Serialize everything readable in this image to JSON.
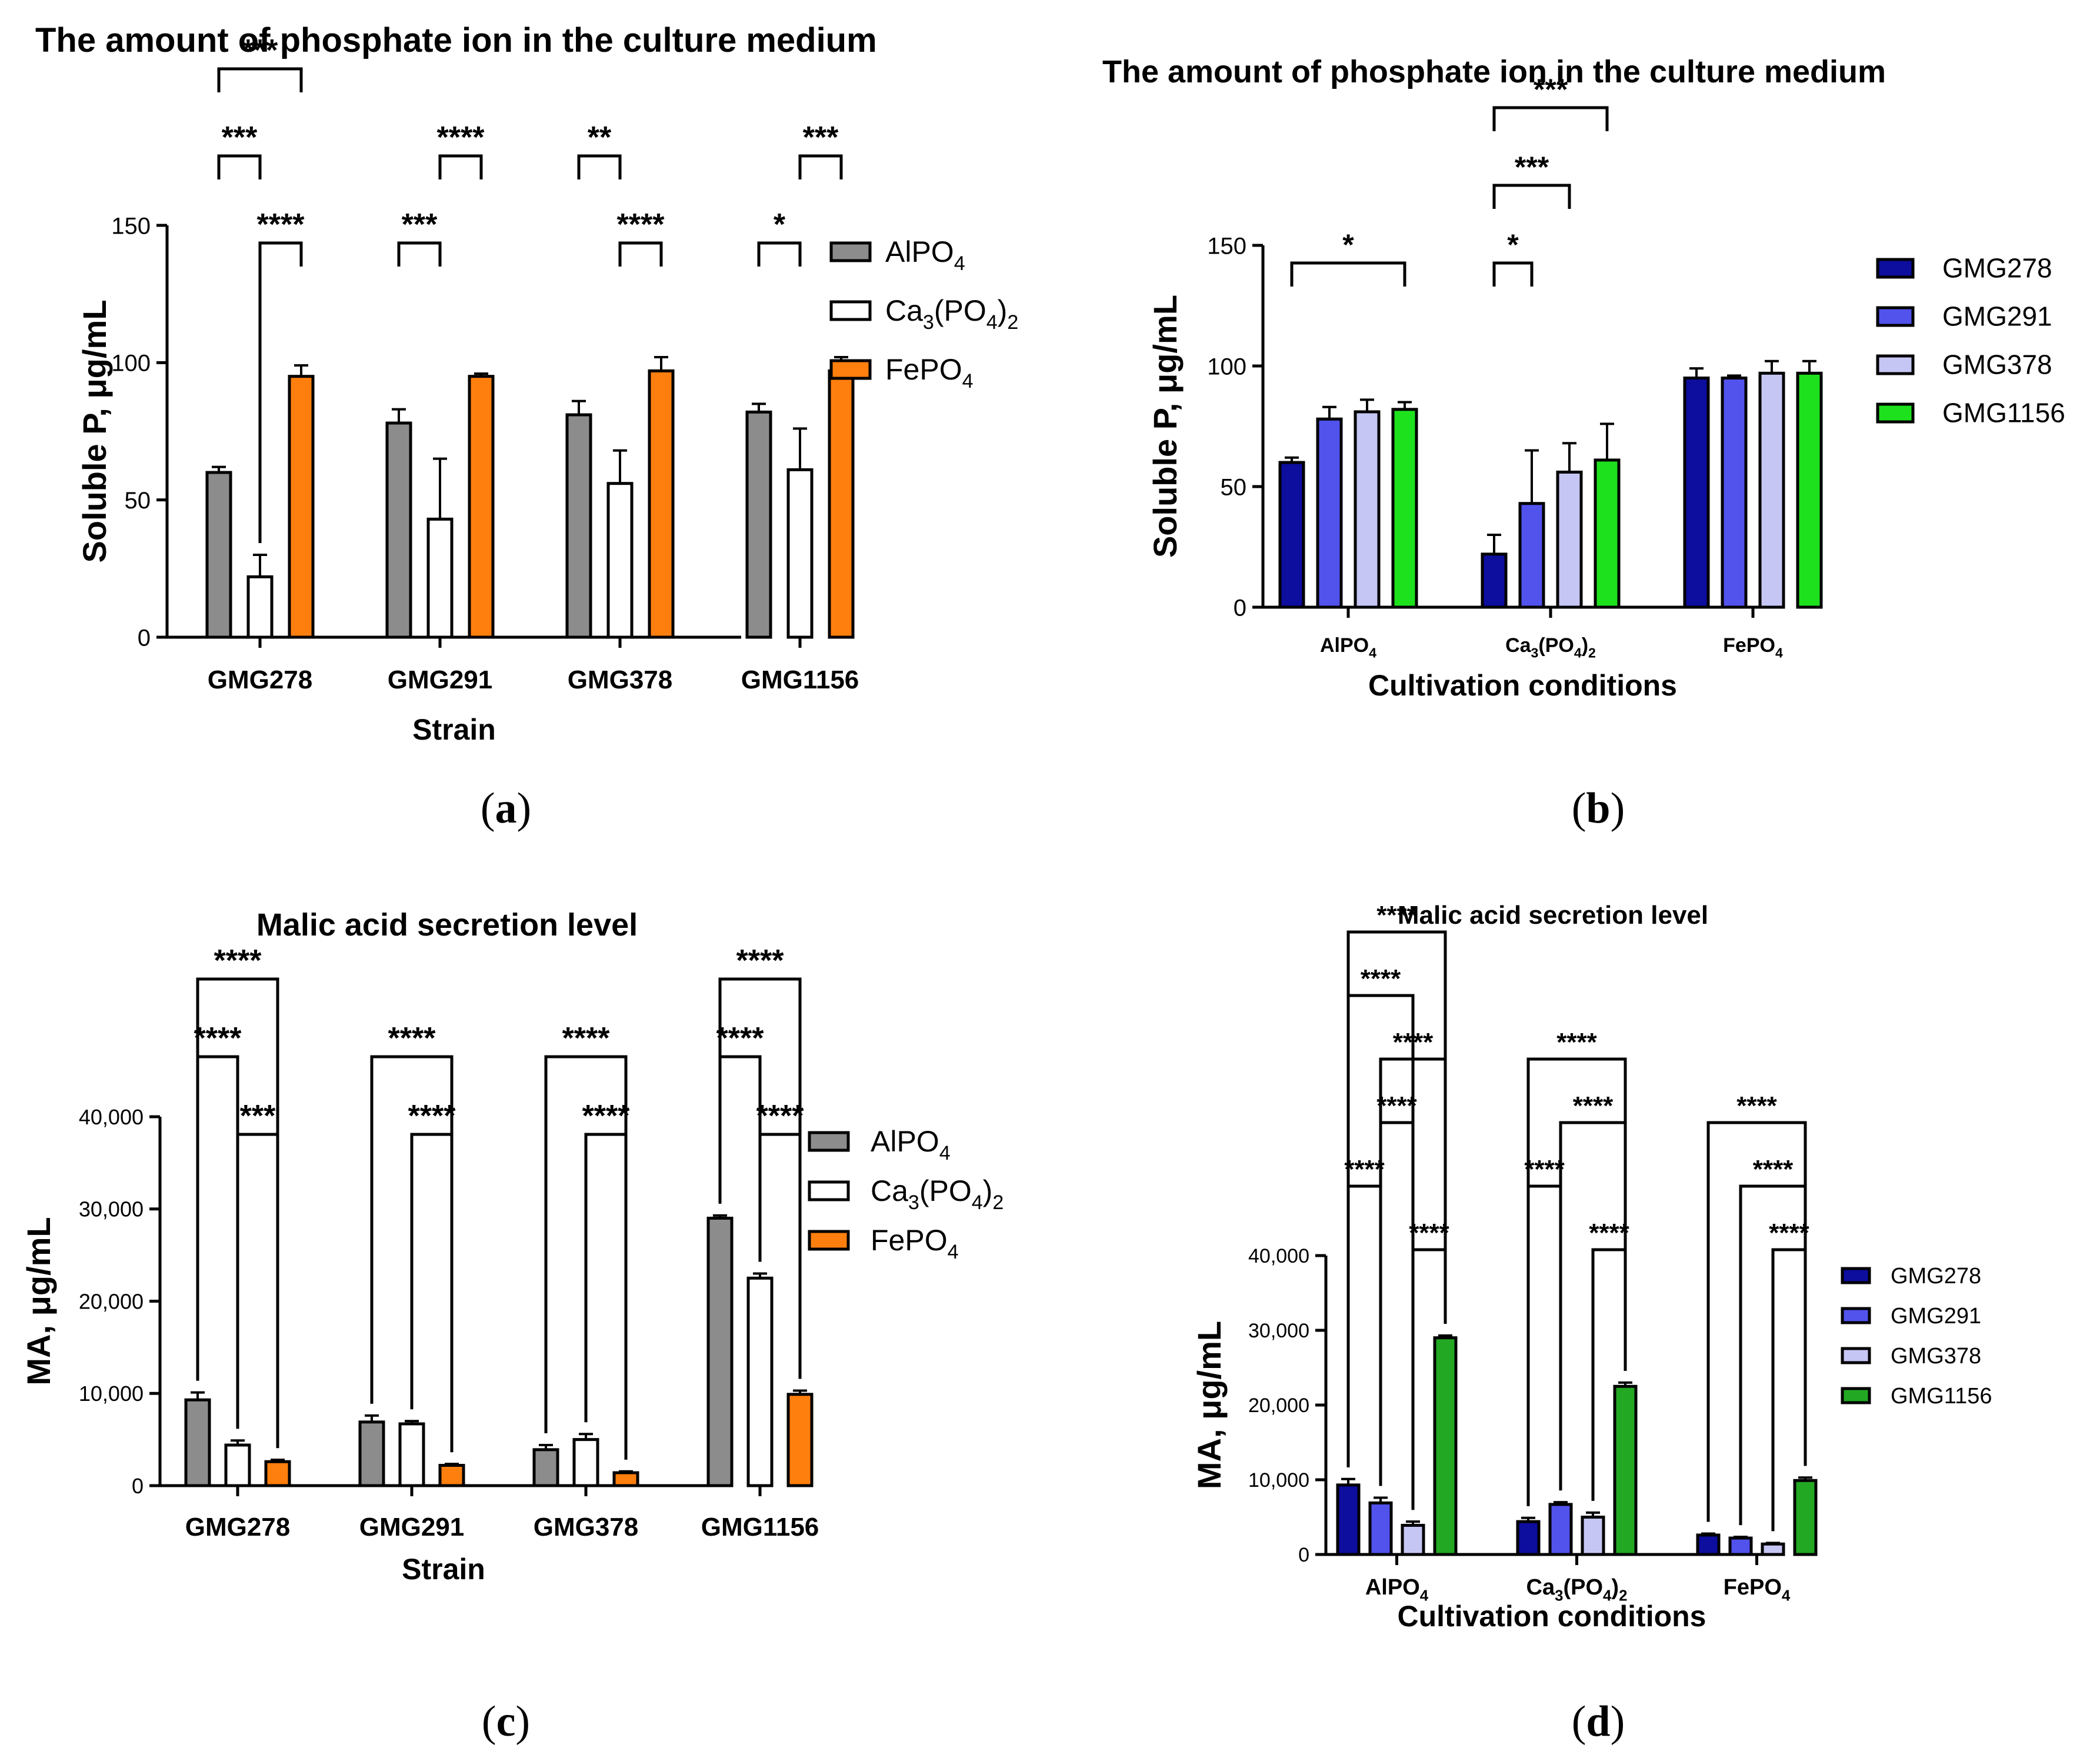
{
  "colors": {
    "gray": "#8c8c8c",
    "white": "#ffffff",
    "orange": "#ff7f0e",
    "dark_blue": "#0d0d9e",
    "mid_blue": "#5252ec",
    "light_lavender": "#c6c6f4",
    "bright_green": "#1ee11e",
    "green": "#23a823"
  },
  "chart_data": [
    {
      "id": "a",
      "panel_label": "a",
      "type": "bar",
      "title": "The amount of phosphate ion in the culture medium",
      "xlabel": "Strain",
      "ylabel": "Soluble P, μg/mL",
      "ylim": [
        0,
        150
      ],
      "yticks": [
        "0",
        "50",
        "100",
        "150"
      ],
      "categories": [
        "GMG278",
        "GMG291",
        "GMG378",
        "GMG1156"
      ],
      "series": [
        {
          "name": "AlPO",
          "sub": "4",
          "values": [
            60,
            78,
            81,
            82
          ],
          "errors": [
            2,
            5,
            5,
            3
          ]
        },
        {
          "name": "Ca",
          "sub": "3",
          "name_mid": "(PO",
          "sub2": "4",
          "name_end": ")",
          "sub3": "2",
          "values": [
            22,
            43,
            56,
            61
          ],
          "errors": [
            8,
            22,
            12,
            15
          ]
        },
        {
          "name": "FePO",
          "sub": "4",
          "values": [
            95,
            95,
            97,
            97
          ],
          "errors": [
            4,
            1,
            5,
            5
          ]
        }
      ],
      "significance": [
        {
          "cat": 0,
          "from": 0,
          "to": 2,
          "label": "***",
          "level": 3
        },
        {
          "cat": 0,
          "from": 0,
          "to": 1,
          "label": "***",
          "level": 2
        },
        {
          "cat": 0,
          "from": 1,
          "to": 2,
          "label": "****",
          "level": 1
        },
        {
          "cat": 1,
          "from": 1,
          "to": 2,
          "label": "****",
          "level": 2
        },
        {
          "cat": 1,
          "from": 0,
          "to": 1,
          "label": "***",
          "level": 1
        },
        {
          "cat": 2,
          "from": 0,
          "to": 1,
          "label": "**",
          "level": 2
        },
        {
          "cat": 2,
          "from": 1,
          "to": 2,
          "label": "****",
          "level": 1
        },
        {
          "cat": 3,
          "from": 1,
          "to": 2,
          "label": "***",
          "level": 2
        },
        {
          "cat": 3,
          "from": 0,
          "to": 1,
          "label": "*",
          "level": 1
        }
      ]
    },
    {
      "id": "b",
      "panel_label": "b",
      "type": "bar",
      "title": "The amount of phosphate ion in the culture medium",
      "xlabel": "Cultivation conditions",
      "ylabel": "Soluble P, μg/mL",
      "ylim": [
        0,
        150
      ],
      "yticks": [
        "0",
        "50",
        "100",
        "150"
      ],
      "categories": [
        {
          "name": "AlPO",
          "sub": "4"
        },
        {
          "name": "Ca",
          "sub": "3",
          "name_mid": "(PO",
          "sub2": "4",
          "name_end": ")",
          "sub3": "2"
        },
        {
          "name": "FePO",
          "sub": "4"
        }
      ],
      "series": [
        {
          "name": "GMG278",
          "values": [
            60,
            22,
            95
          ],
          "errors": [
            2,
            8,
            4
          ]
        },
        {
          "name": "GMG291",
          "values": [
            78,
            43,
            95
          ],
          "errors": [
            5,
            22,
            1
          ]
        },
        {
          "name": "GMG378",
          "values": [
            81,
            56,
            97
          ],
          "errors": [
            5,
            12,
            5
          ]
        },
        {
          "name": "GMG1156",
          "values": [
            82,
            61,
            97
          ],
          "errors": [
            3,
            15,
            5
          ]
        }
      ],
      "significance": [
        {
          "cat": 0,
          "from": 0,
          "to": 3,
          "label": "*",
          "level": 1
        },
        {
          "cat": 1,
          "from": 0,
          "to": 3,
          "label": "***",
          "level": 3
        },
        {
          "cat": 1,
          "from": 0,
          "to": 2,
          "label": "***",
          "level": 2
        },
        {
          "cat": 1,
          "from": 0,
          "to": 1,
          "label": "*",
          "level": 1
        }
      ]
    },
    {
      "id": "c",
      "panel_label": "c",
      "type": "bar",
      "title": "Malic acid secretion level",
      "xlabel": "Strain",
      "ylabel": "MA, μg/mL",
      "ylim": [
        0,
        40000
      ],
      "yticks": [
        "0",
        "10,000",
        "20,000",
        "30,000",
        "40,000"
      ],
      "categories": [
        "GMG278",
        "GMG291",
        "GMG378",
        "GMG1156"
      ],
      "series": [
        {
          "name": "AlPO",
          "sub": "4",
          "values": [
            9300,
            6900,
            3900,
            29000
          ],
          "errors": [
            800,
            700,
            500,
            300
          ]
        },
        {
          "name": "Ca",
          "sub": "3",
          "name_mid": "(PO",
          "sub2": "4",
          "name_end": ")",
          "sub3": "2",
          "values": [
            4400,
            6700,
            5000,
            22500
          ],
          "errors": [
            500,
            300,
            600,
            500
          ]
        },
        {
          "name": "FePO",
          "sub": "4",
          "values": [
            2600,
            2200,
            1400,
            9900
          ],
          "errors": [
            200,
            150,
            150,
            400
          ]
        }
      ],
      "significance": [
        {
          "cat": 0,
          "from": 0,
          "to": 2,
          "label": "****",
          "level": 3
        },
        {
          "cat": 0,
          "from": 0,
          "to": 1,
          "label": "****",
          "level": 2
        },
        {
          "cat": 0,
          "from": 1,
          "to": 2,
          "label": "***",
          "level": 1
        },
        {
          "cat": 1,
          "from": 0,
          "to": 2,
          "label": "****",
          "level": 2
        },
        {
          "cat": 1,
          "from": 1,
          "to": 2,
          "label": "****",
          "level": 1
        },
        {
          "cat": 2,
          "from": 0,
          "to": 2,
          "label": "****",
          "level": 2
        },
        {
          "cat": 2,
          "from": 1,
          "to": 2,
          "label": "****",
          "level": 1
        },
        {
          "cat": 3,
          "from": 0,
          "to": 2,
          "label": "****",
          "level": 3
        },
        {
          "cat": 3,
          "from": 0,
          "to": 1,
          "label": "****",
          "level": 2
        },
        {
          "cat": 3,
          "from": 1,
          "to": 2,
          "label": "****",
          "level": 1
        }
      ]
    },
    {
      "id": "d",
      "panel_label": "d",
      "type": "bar",
      "title": "Malic acid secretion level",
      "xlabel": "Cultivation conditions",
      "ylabel": "MA, μg/mL",
      "ylim": [
        0,
        40000
      ],
      "yticks": [
        "0",
        "10,000",
        "20,000",
        "30,000",
        "40,000"
      ],
      "categories": [
        {
          "name": "AlPO",
          "sub": "4"
        },
        {
          "name": "Ca",
          "sub": "3",
          "name_mid": "(PO",
          "sub2": "4",
          "name_end": ")",
          "sub3": "2"
        },
        {
          "name": "FePO",
          "sub": "4"
        }
      ],
      "series": [
        {
          "name": "GMG278",
          "values": [
            9300,
            4400,
            2600
          ],
          "errors": [
            800,
            500,
            200
          ]
        },
        {
          "name": "GMG291",
          "values": [
            6900,
            6700,
            2200
          ],
          "errors": [
            700,
            300,
            150
          ]
        },
        {
          "name": "GMG378",
          "values": [
            3900,
            5000,
            1400
          ],
          "errors": [
            500,
            600,
            150
          ]
        },
        {
          "name": "GMG1156",
          "values": [
            29000,
            22500,
            9900
          ],
          "errors": [
            300,
            500,
            400
          ]
        }
      ],
      "significance": [
        {
          "cat": 0,
          "from": 0,
          "to": 3,
          "label": "****",
          "level": 6
        },
        {
          "cat": 0,
          "from": 0,
          "to": 2,
          "label": "****",
          "level": 5
        },
        {
          "cat": 0,
          "from": 1,
          "to": 3,
          "label": "****",
          "level": 4
        },
        {
          "cat": 0,
          "from": 1,
          "to": 2,
          "label": "****",
          "level": 3
        },
        {
          "cat": 0,
          "from": 0,
          "to": 1,
          "label": "****",
          "level": 2
        },
        {
          "cat": 0,
          "from": 2,
          "to": 3,
          "label": "****",
          "level": 1
        },
        {
          "cat": 1,
          "from": 0,
          "to": 3,
          "label": "****",
          "level": 4
        },
        {
          "cat": 1,
          "from": 1,
          "to": 3,
          "label": "****",
          "level": 3
        },
        {
          "cat": 1,
          "from": 0,
          "to": 1,
          "label": "****",
          "level": 2
        },
        {
          "cat": 1,
          "from": 2,
          "to": 3,
          "label": "****",
          "level": 1
        },
        {
          "cat": 2,
          "from": 0,
          "to": 3,
          "label": "****",
          "level": 3
        },
        {
          "cat": 2,
          "from": 1,
          "to": 3,
          "label": "****",
          "level": 2
        },
        {
          "cat": 2,
          "from": 2,
          "to": 3,
          "label": "****",
          "level": 1
        }
      ]
    }
  ]
}
